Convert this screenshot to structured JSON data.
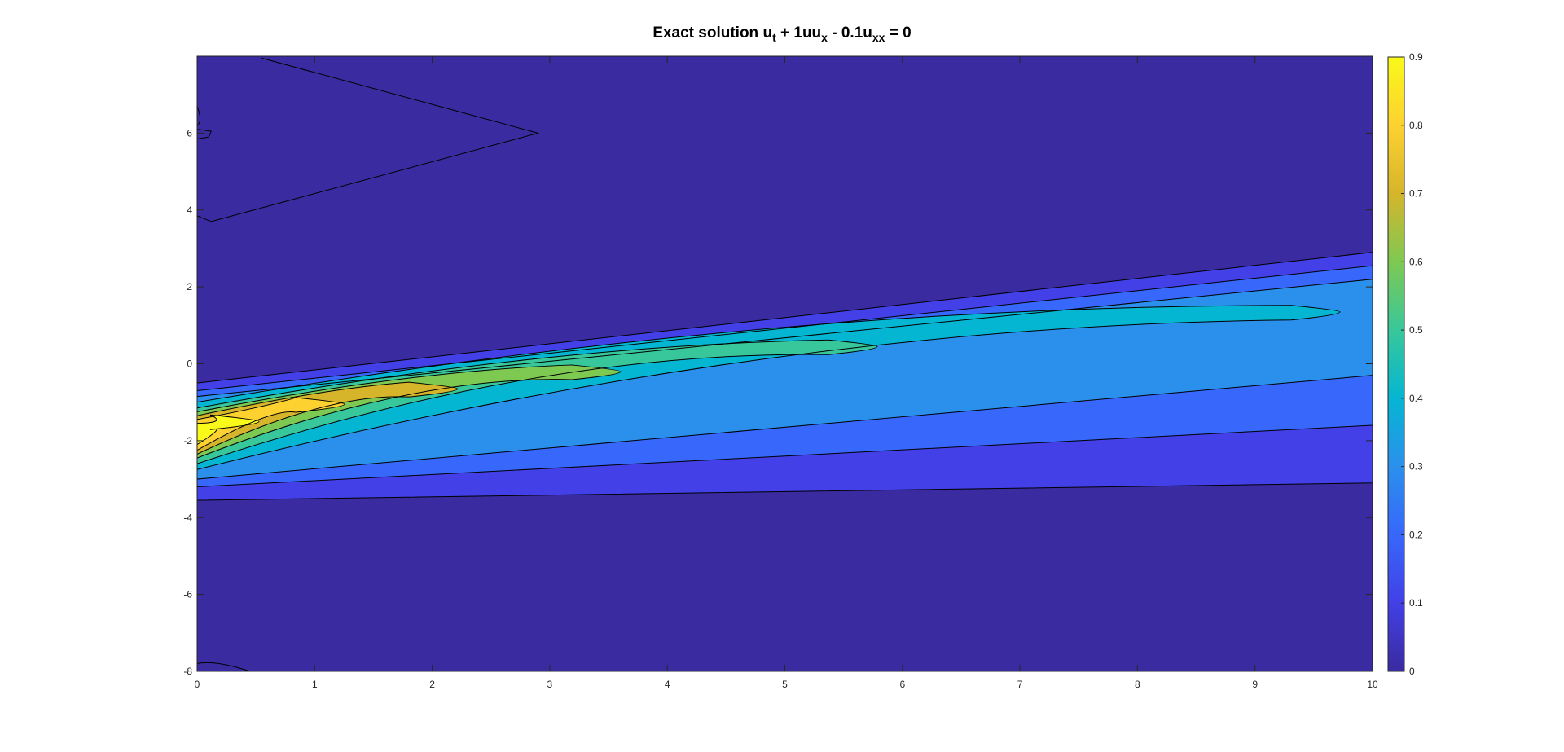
{
  "title": {
    "prefix": "Exact solution u",
    "sub1": "t",
    "mid1": " + 1uu",
    "sub2": "x",
    "mid2": " - 0.1u",
    "sub3": "xx",
    "suffix": " = 0"
  },
  "chart_data": {
    "type": "contourf",
    "title": "Exact solution u_t + 1uu_x - 0.1u_xx = 0",
    "xlabel": "",
    "ylabel": "",
    "xlim": [
      0,
      10
    ],
    "ylim": [
      -8,
      8
    ],
    "xticks": [
      0,
      1,
      2,
      3,
      4,
      5,
      6,
      7,
      8,
      9,
      10
    ],
    "yticks": [
      -8,
      -6,
      -4,
      -2,
      0,
      2,
      4,
      6
    ],
    "colorbar": {
      "range": [
        0,
        0.9
      ],
      "ticks": [
        0,
        0.1,
        0.2,
        0.3,
        0.4,
        0.5,
        0.6,
        0.7,
        0.8,
        0.9
      ],
      "colormap": "parula",
      "placement": "right"
    },
    "contour_levels": [
      0.01,
      0.1,
      0.2,
      0.3,
      0.4,
      0.5,
      0.6,
      0.7,
      0.8
    ],
    "level_colors": [
      "#3a2ba0",
      "#4240e6",
      "#3767fb",
      "#2b90ec",
      "#05b6d2",
      "#38c79a",
      "#7ec952",
      "#d6b52b",
      "#fdd130",
      "#f9f91a"
    ],
    "peak": {
      "t": 0,
      "x": -1.8,
      "value": 0.9
    },
    "grid": false
  }
}
